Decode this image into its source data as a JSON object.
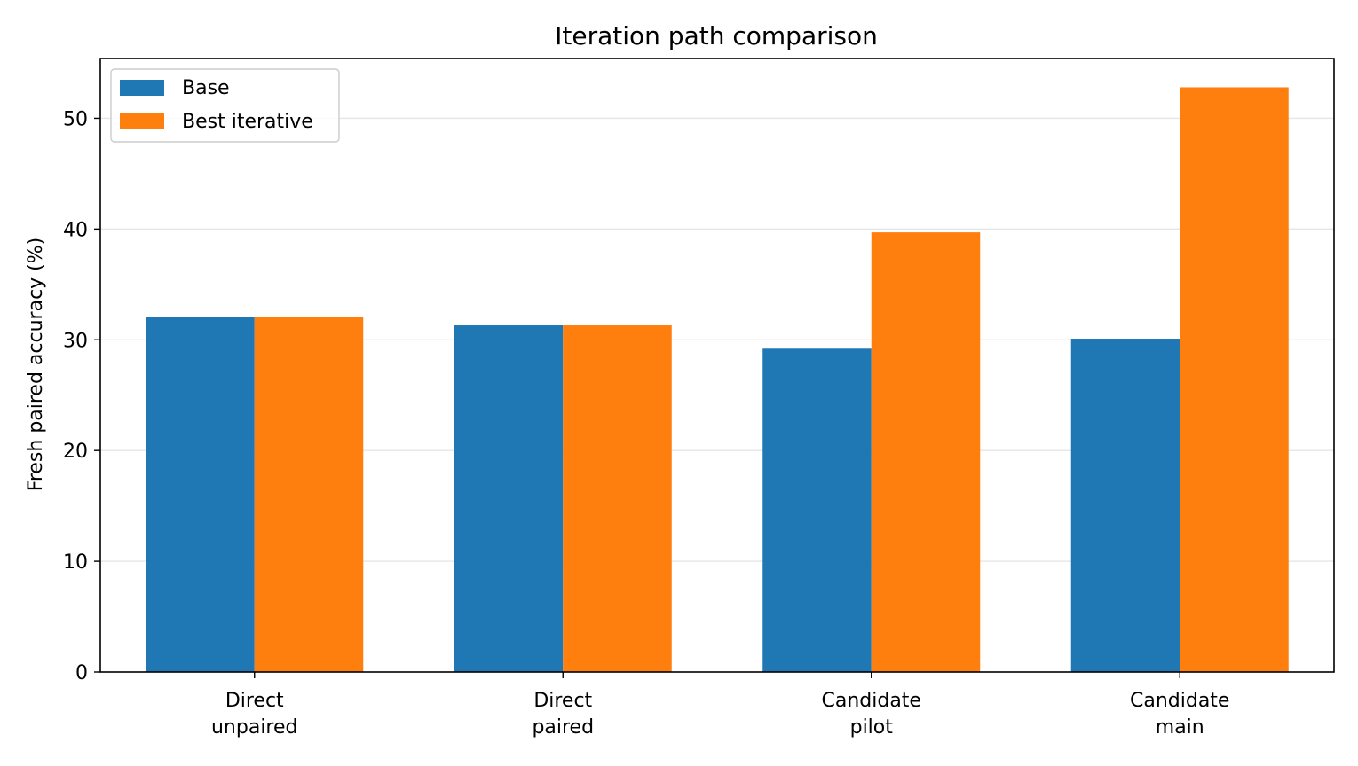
{
  "chart_data": {
    "type": "bar",
    "title": "Iteration path comparison",
    "xlabel": "",
    "ylabel": "Fresh paired accuracy (%)",
    "categories": [
      [
        "Direct",
        "unpaired"
      ],
      [
        "Direct",
        "paired"
      ],
      [
        "Candidate",
        "pilot"
      ],
      [
        "Candidate",
        "main"
      ]
    ],
    "series": [
      {
        "name": "Base",
        "color": "#1f77b4",
        "values": [
          32.1,
          31.3,
          29.2,
          30.1
        ]
      },
      {
        "name": "Best iterative",
        "color": "#ff7f0e",
        "values": [
          32.1,
          31.3,
          39.7,
          52.8
        ]
      }
    ],
    "ylim": [
      0,
      55.4
    ],
    "yticks": [
      0,
      10,
      20,
      30,
      40,
      50
    ],
    "grid": "y",
    "legend": "top-left"
  }
}
